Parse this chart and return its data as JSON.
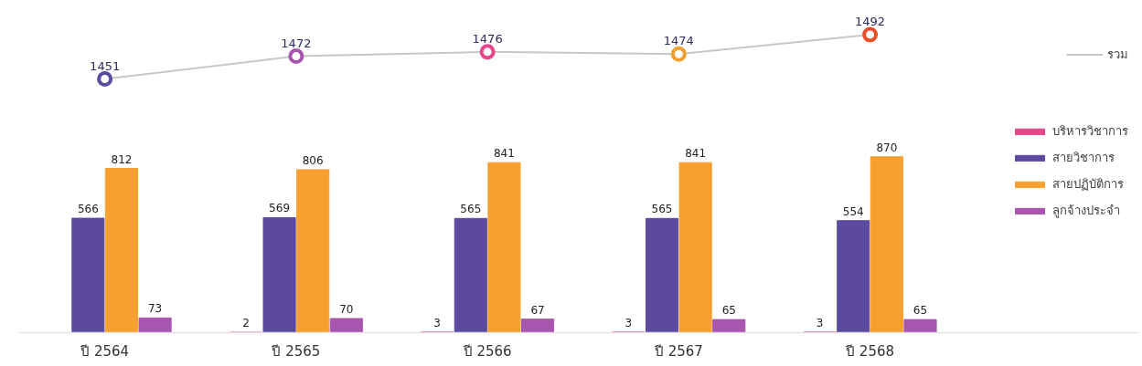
{
  "chart_data": [
    {
      "type": "line",
      "categories": [
        null,
        null,
        null,
        null,
        null
      ],
      "series": [
        {
          "name": "รวม",
          "color": "#c8c8c8",
          "colors": [
            "#5c4aa0",
            "#a855b0",
            "#e8448a",
            "#f0a030",
            "#e8502a"
          ],
          "values": [
            1451,
            1472,
            1476,
            1474,
            1492
          ]
        }
      ],
      "marker": "circle",
      "tick_labels": false,
      "data_labels": true,
      "legend": "right"
    },
    {
      "type": "bar",
      "categories": [
        "ปี 2564",
        "ปี 2565",
        "ปี 2566",
        "ปี 2567",
        "ปี 2568"
      ],
      "series": [
        {
          "name": "บริหารวิชาการ",
          "color": "#e8448a",
          "values": [
            null,
            2,
            3,
            3,
            3
          ]
        },
        {
          "name": "สายวิชาการ",
          "color": "#5c4aa0",
          "values": [
            566,
            569,
            565,
            565,
            554
          ]
        },
        {
          "name": "สายปฏิบัติการ",
          "color": "#f7a030",
          "values": [
            812,
            806,
            841,
            841,
            870
          ]
        },
        {
          "name": "ลูกจ้างประจำ",
          "color": "#a855b0",
          "values": [
            73,
            70,
            67,
            65,
            65
          ]
        }
      ],
      "tick_labels": "x",
      "data_labels": true,
      "legend": "top right"
    }
  ]
}
